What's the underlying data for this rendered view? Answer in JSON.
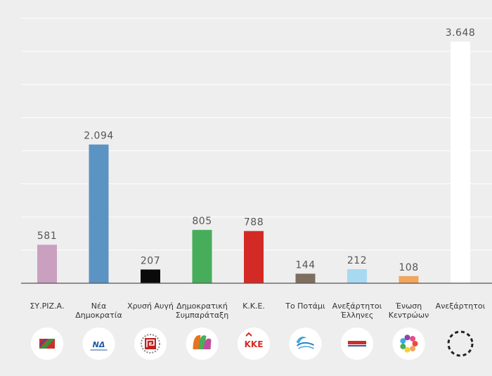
{
  "chart_data": {
    "type": "bar",
    "title": "",
    "xlabel": "",
    "ylabel": "",
    "ylim": [
      0,
      4000
    ],
    "grid": true,
    "categories": [
      [
        "ΣΥ.ΡΙΖ.Α."
      ],
      [
        "Νέα",
        "Δημοκρατία"
      ],
      [
        "Χρυσή Αυγή"
      ],
      [
        "Δημοκρατική",
        "Συμπαράταξη"
      ],
      [
        "Κ.Κ.Ε."
      ],
      [
        "Το Ποτάμι"
      ],
      [
        "Ανεξάρτητοι",
        "Έλληνες"
      ],
      [
        "Ένωση",
        "Κεντρώων"
      ],
      [
        "Ανεξάρτητοι"
      ]
    ],
    "values": [
      581,
      2094,
      207,
      805,
      788,
      144,
      212,
      108,
      3648
    ],
    "value_labels": [
      "581",
      "2.094",
      "207",
      "805",
      "788",
      "144",
      "212",
      "108",
      "3.648"
    ],
    "colors": [
      "#c9a0c0",
      "#5b93c3",
      "#0a0a0a",
      "#47ad5a",
      "#d42a25",
      "#7d6e5e",
      "#a8d9f3",
      "#f2a55e",
      "#ffffff"
    ],
    "logos": [
      "syriza-logo-icon",
      "nd-logo-icon",
      "golden-dawn-logo-icon",
      "pasok-logo-icon",
      "kke-logo-icon",
      "potami-logo-icon",
      "anel-logo-icon",
      "union-centrists-logo-icon",
      "independents-dashed-circle-icon"
    ],
    "logo_texts": [
      "",
      "ΝΔ",
      "",
      "",
      "ΚΚΕ",
      "",
      "",
      "",
      ""
    ]
  }
}
